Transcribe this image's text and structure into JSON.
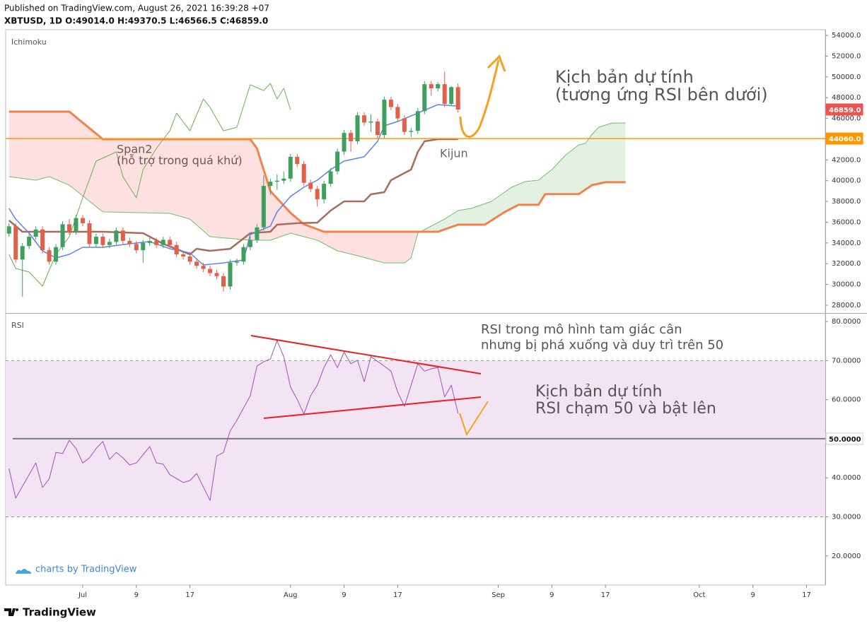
{
  "header": {
    "published": "Published on TradingView.com, August 26, 2021 16:39:28 +07",
    "symbol": "XBTUSD, 1D O:49014.0 H:49370.5 L:46566.5 C:46859.0"
  },
  "chart_data": [
    {
      "type": "candlestick",
      "title": "Ichimoku",
      "xlim": [
        -11.5,
        110.8
      ],
      "ylim": [
        27250,
        54550
      ],
      "yticks": [
        {
          "value": 28000,
          "label": "28000.0"
        },
        {
          "value": 30000,
          "label": "30000.0"
        },
        {
          "value": 32000,
          "label": "32000.0"
        },
        {
          "value": 34000,
          "label": "34000.0"
        },
        {
          "value": 36000,
          "label": "36000.0"
        },
        {
          "value": 38000,
          "label": "38000.0"
        },
        {
          "value": 40000,
          "label": "40000.0"
        },
        {
          "value": 42000,
          "label": "42000.0"
        },
        {
          "value": 44000,
          "label": "44000.0"
        },
        {
          "value": 46000,
          "label": "46000.0"
        },
        {
          "value": 48000,
          "label": "48000.0"
        },
        {
          "value": 50000,
          "label": "50000.0"
        },
        {
          "value": 52000,
          "label": "52000.0"
        },
        {
          "value": 54000,
          "label": "54000.0"
        }
      ],
      "up_color": "#3f9f5f",
      "down_color": "#e0604a",
      "x": [
        -11,
        -10,
        -9,
        -8,
        -7,
        -6,
        -5,
        -4,
        -3,
        -2,
        -1,
        0,
        1,
        2,
        3,
        4,
        5,
        6,
        7,
        8,
        9,
        10,
        11,
        12,
        13,
        14,
        15,
        16,
        17,
        18,
        19,
        20,
        21,
        22,
        23,
        24,
        25,
        26,
        27,
        28,
        29,
        30,
        31,
        32,
        33,
        34,
        35,
        36,
        37,
        38,
        39,
        40,
        41,
        42,
        43,
        44,
        45,
        46,
        47,
        48,
        49,
        50,
        51,
        52,
        53,
        54,
        55,
        56
      ],
      "ohlc": [
        [
          34900,
          35900,
          34600,
          35600
        ],
        [
          35600,
          35900,
          32100,
          32400
        ],
        [
          32400,
          34000,
          28800,
          33700
        ],
        [
          33700,
          34900,
          33400,
          34600
        ],
        [
          34600,
          35600,
          34300,
          35300
        ],
        [
          35300,
          35600,
          33000,
          33300
        ],
        [
          33300,
          33600,
          31900,
          32200
        ],
        [
          32200,
          33900,
          31900,
          33600
        ],
        [
          33600,
          36100,
          33300,
          35800
        ],
        [
          35800,
          36300,
          34800,
          35100
        ],
        [
          35100,
          36700,
          34800,
          36400
        ],
        [
          36400,
          36700,
          35600,
          35900
        ],
        [
          35900,
          36200,
          33600,
          33900
        ],
        [
          33900,
          34900,
          33600,
          34600
        ],
        [
          34600,
          34900,
          33500,
          33800
        ],
        [
          33800,
          34400,
          33500,
          34100
        ],
        [
          34100,
          35500,
          33800,
          35200
        ],
        [
          35200,
          35500,
          33900,
          34200
        ],
        [
          34200,
          34500,
          33600,
          33900
        ],
        [
          33900,
          34200,
          33000,
          33300
        ],
        [
          33300,
          34300,
          32100,
          34000
        ],
        [
          34000,
          34500,
          33700,
          34200
        ],
        [
          34200,
          34500,
          33500,
          33800
        ],
        [
          33800,
          34600,
          33500,
          34300
        ],
        [
          34300,
          34600,
          33500,
          33800
        ],
        [
          33800,
          34100,
          32600,
          32900
        ],
        [
          32900,
          33200,
          32400,
          32700
        ],
        [
          32700,
          33000,
          31900,
          32200
        ],
        [
          32200,
          32500,
          31500,
          31800
        ],
        [
          31800,
          32100,
          31200,
          31500
        ],
        [
          31500,
          31800,
          30800,
          31100
        ],
        [
          31100,
          31400,
          30500,
          30800
        ],
        [
          30800,
          31100,
          29300,
          29800
        ],
        [
          29800,
          32400,
          29500,
          32100
        ],
        [
          32100,
          32500,
          31800,
          32200
        ],
        [
          32200,
          33900,
          31900,
          33600
        ],
        [
          33600,
          34600,
          33300,
          34300
        ],
        [
          34300,
          35800,
          34000,
          35500
        ],
        [
          35500,
          40500,
          35200,
          39500
        ],
        [
          39500,
          40200,
          38600,
          39900
        ],
        [
          39900,
          40600,
          39100,
          40000
        ],
        [
          40000,
          40900,
          39700,
          40200
        ],
        [
          40200,
          42600,
          39900,
          42300
        ],
        [
          42300,
          42600,
          41300,
          41600
        ],
        [
          41600,
          41900,
          39500,
          39800
        ],
        [
          39800,
          40100,
          38900,
          39200
        ],
        [
          39200,
          39500,
          37500,
          38200
        ],
        [
          38200,
          40000,
          37800,
          39700
        ],
        [
          39700,
          41200,
          39400,
          40900
        ],
        [
          40900,
          43100,
          40600,
          42800
        ],
        [
          42800,
          44900,
          42500,
          44600
        ],
        [
          44600,
          44900,
          42800,
          43800
        ],
        [
          43800,
          46600,
          43500,
          46300
        ],
        [
          46300,
          46600,
          45300,
          45600
        ],
        [
          45600,
          46400,
          44700,
          45700
        ],
        [
          45700,
          46000,
          44100,
          44400
        ],
        [
          44400,
          48100,
          44100,
          47800
        ],
        [
          47800,
          48100,
          46800,
          47100
        ],
        [
          47100,
          47400,
          45700,
          46000
        ],
        [
          46000,
          46300,
          44400,
          44700
        ],
        [
          44700,
          45100,
          44200,
          44800
        ],
        [
          44800,
          47000,
          44500,
          46700
        ],
        [
          46700,
          49600,
          46400,
          49300
        ],
        [
          49300,
          49600,
          48200,
          48900
        ],
        [
          48900,
          49500,
          48600,
          49300
        ],
        [
          49300,
          50500,
          47100,
          47400
        ],
        [
          47400,
          49100,
          47200,
          49014
        ],
        [
          49014,
          49370,
          46566,
          46859
        ]
      ],
      "span_a": {
        "color": "#6fbf6f",
        "x": [
          -11,
          -7,
          -5,
          -2,
          3,
          13,
          16,
          19,
          25,
          28,
          31,
          35,
          38,
          41,
          45,
          48,
          49,
          50,
          54,
          56,
          58,
          61,
          64,
          66,
          68,
          70,
          72,
          74,
          75,
          76,
          77,
          79,
          81
        ],
        "values": [
          40390,
          40050,
          40390,
          39570,
          36990,
          36850,
          36300,
          34600,
          34260,
          34260,
          34940,
          34260,
          33240,
          32770,
          32080,
          32080,
          32560,
          34940,
          36300,
          37120,
          37330,
          38010,
          39370,
          39910,
          40050,
          41070,
          42430,
          43450,
          43590,
          44470,
          45150,
          45560,
          45560
        ]
      },
      "span_b": {
        "color": "#f0824a",
        "x": [
          -11,
          -2,
          3,
          25,
          26,
          28,
          31,
          33,
          36,
          53,
          56,
          60,
          63,
          65,
          68,
          69,
          74,
          76,
          78,
          81
        ],
        "values": [
          46650,
          46650,
          44000,
          44000,
          43100,
          39000,
          36900,
          35800,
          35080,
          35080,
          35760,
          35760,
          36990,
          37670,
          37670,
          38700,
          38700,
          39570,
          39850,
          39850
        ]
      },
      "cloud_colors": [
        "#fde0e0",
        "#e3f1e3"
      ],
      "tenkan": {
        "color": "#5b86e5",
        "x": [
          -11,
          -10,
          -8,
          -6,
          -4,
          -2,
          0,
          3,
          7,
          10,
          13,
          16,
          18,
          21,
          24,
          25,
          28,
          29,
          31,
          33,
          35,
          37,
          39,
          42,
          44,
          45,
          47,
          50,
          52,
          53,
          56
        ],
        "values": [
          37330,
          36300,
          34940,
          33240,
          32560,
          32900,
          33580,
          33580,
          33920,
          34130,
          33440,
          33040,
          31880,
          32080,
          32360,
          34800,
          35620,
          36990,
          38480,
          39370,
          40050,
          41070,
          41890,
          42300,
          43790,
          45290,
          45700,
          46510,
          47060,
          47330,
          47190
        ]
      },
      "kijun": {
        "color": "#a86c5c",
        "x": [
          -11,
          -9,
          -2,
          3,
          9,
          12,
          16,
          17,
          19,
          22,
          25,
          28,
          29,
          32,
          35,
          37,
          39,
          42,
          43,
          45,
          46,
          49,
          50,
          51,
          53,
          56
        ],
        "values": [
          36170,
          35080,
          35080,
          35080,
          34940,
          33920,
          32900,
          33440,
          33240,
          33440,
          34940,
          35080,
          35760,
          35900,
          35960,
          37120,
          38010,
          38010,
          38690,
          38890,
          40050,
          41070,
          42770,
          43790,
          44000,
          44000
        ]
      },
      "lagging": {
        "color": "#6ab04c",
        "x": [
          -11,
          -10,
          -8,
          -6,
          -4,
          -2,
          0,
          2,
          5,
          6,
          8,
          9,
          11,
          13,
          14,
          16,
          18,
          19,
          21,
          23,
          25,
          27,
          28,
          29,
          30,
          31
        ],
        "values": [
          32900,
          31540,
          31200,
          29840,
          32900,
          34600,
          38350,
          41890,
          42770,
          40390,
          38350,
          41070,
          43110,
          44810,
          46510,
          44810,
          47870,
          47060,
          44810,
          45150,
          49240,
          48690,
          49370,
          47870,
          48900,
          46850
        ]
      },
      "hline": {
        "value": 44060,
        "label": "44060.0",
        "color": "#ff9800"
      },
      "last_price": {
        "value": 46859,
        "label": "46859.0",
        "color": "#ef5350"
      },
      "annotations": [
        "Span2",
        "(hỗ trợ trong quá khứ)",
        "Kijun",
        "Kịch bản dự tính",
        "(tương ứng RSI bên dưới)"
      ]
    },
    {
      "type": "line",
      "title": "RSI",
      "color": "#a050b8",
      "xlim": [
        -11.5,
        110.8
      ],
      "ylim": [
        12.55,
        82
      ],
      "yticks": [
        {
          "value": 20,
          "label": "20.0000"
        },
        {
          "value": 30,
          "label": "30.0000"
        },
        {
          "value": 40,
          "label": "40.0000"
        },
        {
          "value": 50,
          "label": "50.0000"
        },
        {
          "value": 60,
          "label": "60.0000"
        },
        {
          "value": 70,
          "label": "70.0000"
        },
        {
          "value": 80,
          "label": "80.0000"
        }
      ],
      "xticks": [
        {
          "value": 0,
          "label": "Jul"
        },
        {
          "value": 8,
          "label": "9"
        },
        {
          "value": 16,
          "label": "17"
        },
        {
          "value": 31,
          "label": "Aug"
        },
        {
          "value": 39,
          "label": "9"
        },
        {
          "value": 47,
          "label": "17"
        },
        {
          "value": 62,
          "label": "Sep"
        },
        {
          "value": 70,
          "label": "9"
        },
        {
          "value": 78,
          "label": "17"
        },
        {
          "value": 92,
          "label": "Oct"
        },
        {
          "value": 100,
          "label": "9"
        },
        {
          "value": 108,
          "label": "17"
        }
      ],
      "x": [
        -11,
        -10,
        -8,
        -7,
        -6,
        -5,
        -4,
        -3,
        -2,
        -1,
        0,
        1,
        2,
        3,
        4,
        5,
        6,
        7,
        8,
        10,
        11,
        12,
        13,
        15,
        16,
        17,
        19,
        20,
        21,
        22,
        23,
        25,
        26,
        27,
        28,
        29,
        30,
        31,
        32,
        33,
        34,
        35,
        36,
        37,
        38,
        39,
        40,
        41,
        42,
        43,
        45,
        46,
        47,
        48,
        49,
        50,
        51,
        52,
        53,
        54,
        55,
        56
      ],
      "values": [
        42.4,
        34.8,
        40.8,
        43.8,
        37.5,
        39.7,
        46.5,
        46.2,
        49.6,
        47.5,
        43.8,
        45.1,
        47.5,
        49.3,
        44.7,
        46.5,
        45.1,
        43.3,
        43.8,
        48.0,
        43.8,
        43.5,
        40.8,
        38.8,
        39.3,
        41.1,
        34.2,
        45.6,
        46.5,
        52.0,
        54.7,
        61.0,
        68.6,
        69.7,
        70.4,
        75.1,
        71.0,
        63.2,
        60.1,
        56.3,
        61.0,
        63.7,
        68.2,
        71.5,
        68.2,
        72.2,
        69.2,
        70.1,
        64.6,
        71.0,
        68.6,
        67.3,
        61.9,
        58.3,
        63.7,
        69.2,
        67.3,
        67.9,
        68.2,
        60.7,
        63.7,
        56.5
      ],
      "band": [
        30,
        70
      ],
      "band_color": "#f3e4f4",
      "midline": {
        "value": 50,
        "label": "50.0000",
        "color": "#787b86"
      },
      "annotations": [
        "RSI trong mô hình tam giác cân",
        "nhưng bị phá xuống và duy trì trên 50",
        "Kịch bản dự tính",
        "RSI chạm 50 và bật lên"
      ]
    }
  ],
  "footer": {
    "credit": "charts by TradingView",
    "brand": "TradingView"
  }
}
